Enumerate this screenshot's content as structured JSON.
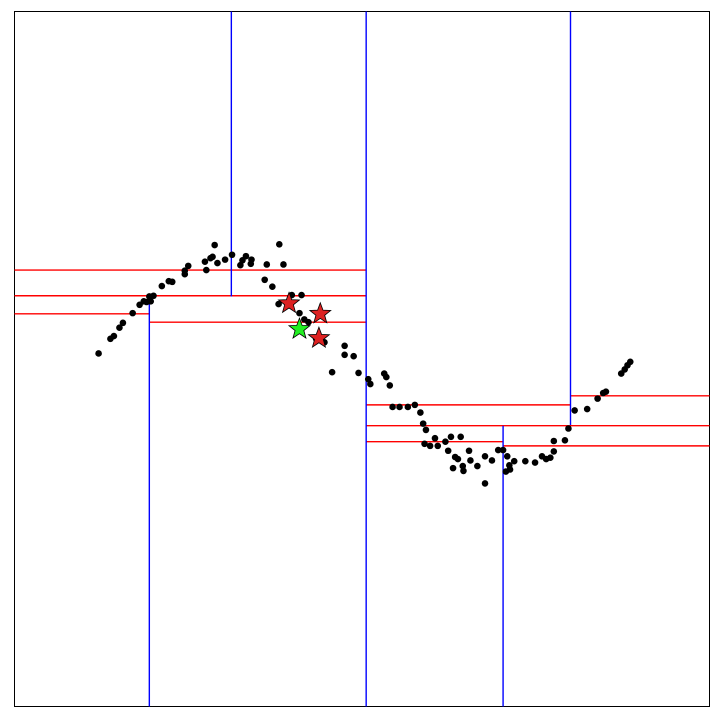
{
  "chart_data": {
    "type": "scatter",
    "title": "",
    "xlabel": "",
    "ylabel": "",
    "xlim": [
      0,
      1
    ],
    "ylim": [
      0,
      1
    ],
    "grid": false,
    "colors": {
      "frame": "#000000",
      "point": "#000000",
      "vertical_split": "#0000ff",
      "horizontal_split": "#ff0000",
      "query": "#22ee22",
      "neighbor": "#dd2222"
    },
    "points": [
      [
        0.121,
        0.508
      ],
      [
        0.138,
        0.529
      ],
      [
        0.143,
        0.533
      ],
      [
        0.151,
        0.545
      ],
      [
        0.156,
        0.552
      ],
      [
        0.17,
        0.566
      ],
      [
        0.18,
        0.578
      ],
      [
        0.186,
        0.583
      ],
      [
        0.19,
        0.582
      ],
      [
        0.196,
        0.583
      ],
      [
        0.194,
        0.59
      ],
      [
        0.2,
        0.591
      ],
      [
        0.212,
        0.605
      ],
      [
        0.222,
        0.612
      ],
      [
        0.227,
        0.611
      ],
      [
        0.245,
        0.622
      ],
      [
        0.245,
        0.627
      ],
      [
        0.25,
        0.634
      ],
      [
        0.276,
        0.628
      ],
      [
        0.274,
        0.64
      ],
      [
        0.282,
        0.645
      ],
      [
        0.292,
        0.638
      ],
      [
        0.285,
        0.647
      ],
      [
        0.288,
        0.664
      ],
      [
        0.303,
        0.643
      ],
      [
        0.313,
        0.65
      ],
      [
        0.325,
        0.635
      ],
      [
        0.328,
        0.642
      ],
      [
        0.333,
        0.648
      ],
      [
        0.34,
        0.637
      ],
      [
        0.341,
        0.643
      ],
      [
        0.363,
        0.636
      ],
      [
        0.36,
        0.614
      ],
      [
        0.371,
        0.604
      ],
      [
        0.381,
        0.665
      ],
      [
        0.387,
        0.636
      ],
      [
        0.38,
        0.579
      ],
      [
        0.399,
        0.592
      ],
      [
        0.413,
        0.592
      ],
      [
        0.41,
        0.566
      ],
      [
        0.417,
        0.557
      ],
      [
        0.423,
        0.553
      ],
      [
        0.434,
        0.529
      ],
      [
        0.446,
        0.524
      ],
      [
        0.457,
        0.481
      ],
      [
        0.475,
        0.519
      ],
      [
        0.475,
        0.506
      ],
      [
        0.488,
        0.504
      ],
      [
        0.495,
        0.48
      ],
      [
        0.509,
        0.471
      ],
      [
        0.512,
        0.464
      ],
      [
        0.532,
        0.479
      ],
      [
        0.535,
        0.474
      ],
      [
        0.54,
        0.462
      ],
      [
        0.544,
        0.431
      ],
      [
        0.554,
        0.431
      ],
      [
        0.566,
        0.431
      ],
      [
        0.576,
        0.434
      ],
      [
        0.584,
        0.423
      ],
      [
        0.588,
        0.407
      ],
      [
        0.592,
        0.398
      ],
      [
        0.59,
        0.378
      ],
      [
        0.598,
        0.375
      ],
      [
        0.605,
        0.386
      ],
      [
        0.609,
        0.375
      ],
      [
        0.62,
        0.381
      ],
      [
        0.624,
        0.368
      ],
      [
        0.634,
        0.359
      ],
      [
        0.638,
        0.356
      ],
      [
        0.628,
        0.388
      ],
      [
        0.642,
        0.388
      ],
      [
        0.631,
        0.343
      ],
      [
        0.645,
        0.346
      ],
      [
        0.646,
        0.339
      ],
      [
        0.654,
        0.368
      ],
      [
        0.656,
        0.354
      ],
      [
        0.666,
        0.346
      ],
      [
        0.677,
        0.36
      ],
      [
        0.677,
        0.321
      ],
      [
        0.687,
        0.354
      ],
      [
        0.696,
        0.369
      ],
      [
        0.703,
        0.369
      ],
      [
        0.709,
        0.36
      ],
      [
        0.707,
        0.338
      ],
      [
        0.713,
        0.341
      ],
      [
        0.712,
        0.347
      ],
      [
        0.719,
        0.353
      ],
      [
        0.735,
        0.353
      ],
      [
        0.749,
        0.351
      ],
      [
        0.759,
        0.36
      ],
      [
        0.765,
        0.356
      ],
      [
        0.771,
        0.358
      ],
      [
        0.776,
        0.367
      ],
      [
        0.776,
        0.382
      ],
      [
        0.792,
        0.383
      ],
      [
        0.797,
        0.4
      ],
      [
        0.806,
        0.426
      ],
      [
        0.824,
        0.428
      ],
      [
        0.839,
        0.443
      ],
      [
        0.847,
        0.451
      ],
      [
        0.851,
        0.453
      ],
      [
        0.873,
        0.479
      ],
      [
        0.878,
        0.485
      ],
      [
        0.882,
        0.491
      ],
      [
        0.886,
        0.496
      ]
    ],
    "query_point": [
      0.41,
      0.543
    ],
    "neighbor_points": [
      [
        0.395,
        0.58
      ],
      [
        0.44,
        0.565
      ],
      [
        0.438,
        0.53
      ]
    ],
    "vertical_splits": [
      {
        "x": 0.312,
        "y0": 0.59,
        "y1": 1.0
      },
      {
        "x": 0.506,
        "y0": 0.0,
        "y1": 1.0
      },
      {
        "x": 0.194,
        "y0": 0.0,
        "y1": 0.59
      },
      {
        "x": 0.8,
        "y0": 0.405,
        "y1": 1.0
      },
      {
        "x": 0.703,
        "y0": 0.0,
        "y1": 0.404
      }
    ],
    "horizontal_splits": [
      {
        "y": 0.628,
        "x0": 0.0,
        "x1": 0.506
      },
      {
        "y": 0.591,
        "x0": 0.0,
        "x1": 0.506
      },
      {
        "y": 0.565,
        "x0": 0.0,
        "x1": 0.194
      },
      {
        "y": 0.553,
        "x0": 0.194,
        "x1": 0.506
      },
      {
        "y": 0.434,
        "x0": 0.506,
        "x1": 0.8
      },
      {
        "y": 0.404,
        "x0": 0.506,
        "x1": 1.0
      },
      {
        "y": 0.381,
        "x0": 0.506,
        "x1": 0.703
      },
      {
        "y": 0.447,
        "x0": 0.8,
        "x1": 1.0
      },
      {
        "y": 0.375,
        "x0": 0.703,
        "x1": 1.0
      }
    ]
  }
}
